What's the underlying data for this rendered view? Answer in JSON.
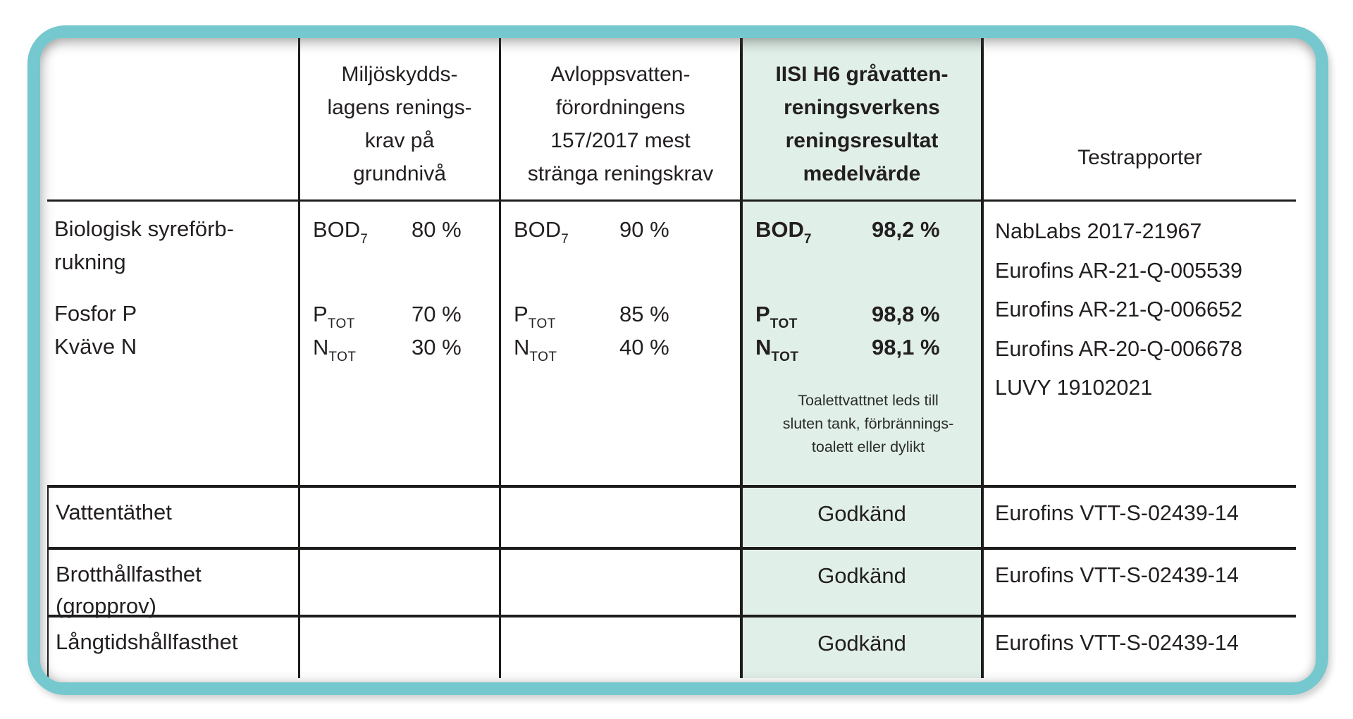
{
  "colors": {
    "frame_teal": "#74c8ce",
    "highlight_green": "#e0efe8",
    "rule_black": "#1d1d1b",
    "text": "#231f20"
  },
  "header": {
    "col_labels": "",
    "basic": "Miljöskydds-\nlagens renings-\nkrav på\ngrundnivå",
    "strict": "Avloppsvatten-\nförordningens\n157/2017 mest\nstränga reningskrav",
    "iisi": "IISI H6 gråvatten-\nreningsverkens\nreningsresultat\nmedelvärde",
    "reports": "Testrapporter"
  },
  "purification": {
    "label_top": "Biologisk syreförb-\nrukning",
    "label_bottom": "Fosfor P\nKväve N",
    "basic": [
      {
        "name": "BOD",
        "sub": "7",
        "value": "80 %"
      },
      {
        "name": "P",
        "sub": "TOT",
        "value": "70 %"
      },
      {
        "name": "N",
        "sub": "TOT",
        "value": "30 %"
      }
    ],
    "strict": [
      {
        "name": "BOD",
        "sub": "7",
        "value": "90 %"
      },
      {
        "name": "P",
        "sub": "TOT",
        "value": "85 %"
      },
      {
        "name": "N",
        "sub": "TOT",
        "value": "40 %"
      }
    ],
    "iisi": [
      {
        "name": "BOD",
        "sub": "7",
        "value": "98,2 %"
      },
      {
        "name": "P",
        "sub": "TOT",
        "value": "98,8 %"
      },
      {
        "name": "N",
        "sub": "TOT",
        "value": "98,1 %"
      }
    ],
    "iisi_note": "Toalettvattnet leds till\nsluten tank, förbrännings-\ntoalett eller dylikt",
    "reports": "NabLabs 2017-21967\nEurofins AR-21-Q-005539\nEurofins AR-21-Q-006652\nEurofins AR-20-Q-006678\nLUVY 19102021"
  },
  "strength_rows": [
    {
      "label": "Vattentäthet",
      "status": "Godkänd",
      "report": "Eurofins VTT-S-02439-14"
    },
    {
      "label": "Brotthållfasthet\n(gropprov)",
      "status": "Godkänd",
      "report": "Eurofins VTT-S-02439-14"
    },
    {
      "label": "Långtidshållfasthet",
      "status": "Godkänd",
      "report": "Eurofins VTT-S-02439-14"
    }
  ]
}
